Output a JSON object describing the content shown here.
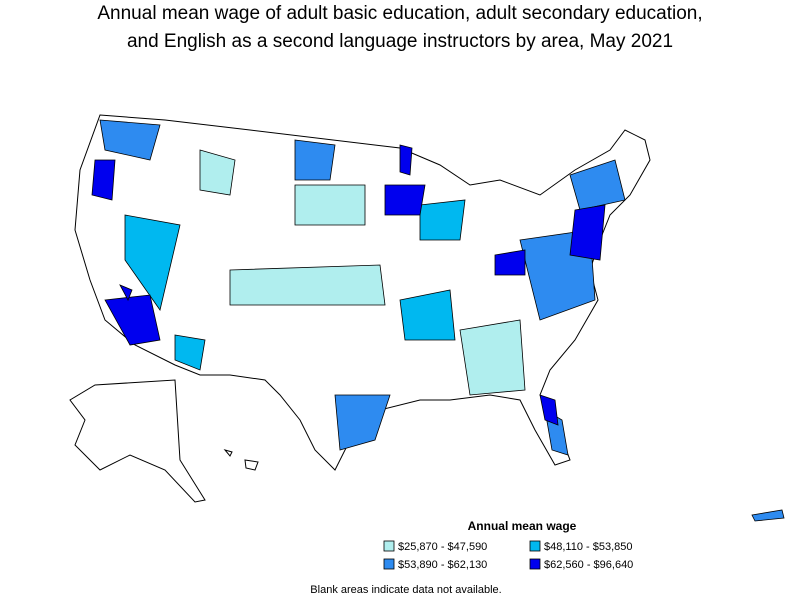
{
  "header": {
    "title_lines": [
      "Annual mean wage of adult basic education, adult secondary education,",
      "and English as a second language instructors by area, May 2021"
    ]
  },
  "legend": {
    "title": "Annual mean wage",
    "items": [
      {
        "label": "$25,870 - $47,590",
        "color": "#b0eeee"
      },
      {
        "label": "$48,110 - $53,850",
        "color": "#00b8f0"
      },
      {
        "label": "$53,890 - $62,130",
        "color": "#2e8bf0"
      },
      {
        "label": "$62,560 - $96,640",
        "color": "#0000ee"
      }
    ]
  },
  "footnote": "Blank areas indicate data not available."
}
